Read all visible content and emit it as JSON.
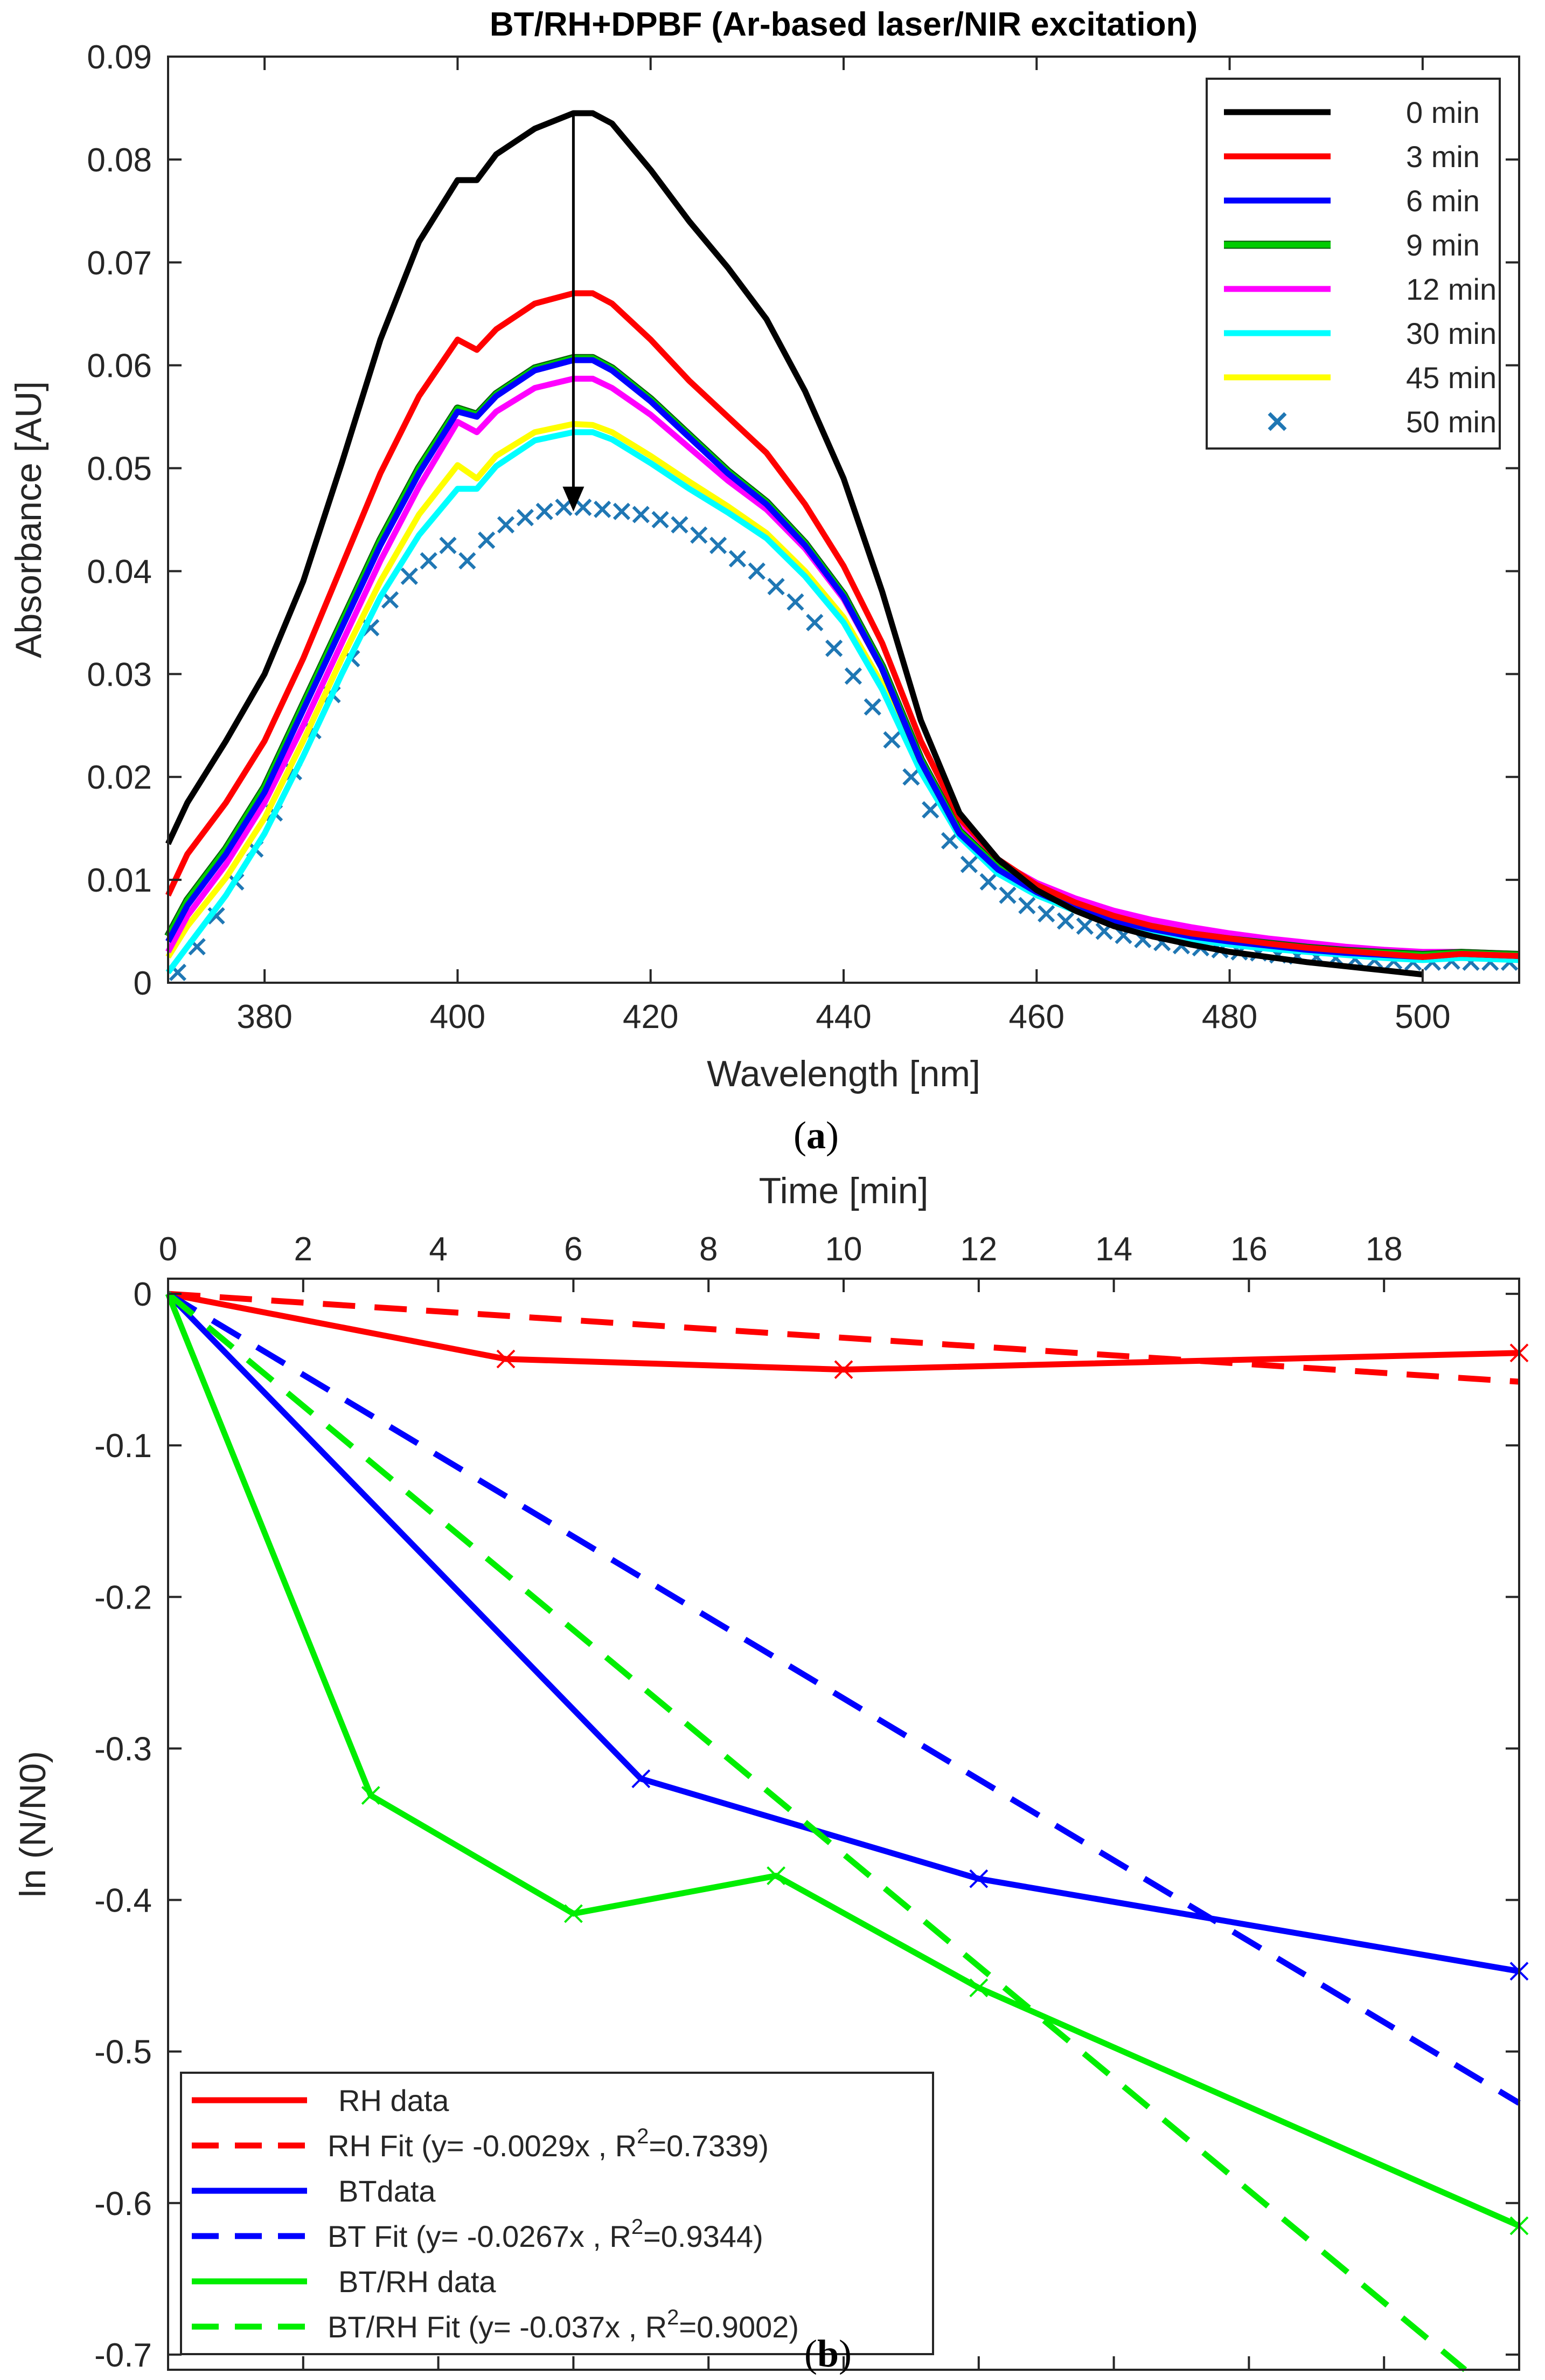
{
  "chart_data": [
    {
      "type": "line",
      "title": "BT/RH+DPBF (Ar-based laser/NIR excitation)",
      "xlabel": "Wavelength [nm]",
      "ylabel": "Absorbance [AU]",
      "xlim": [
        370,
        510
      ],
      "ylim": [
        0,
        0.09
      ],
      "xticks": [
        380,
        400,
        420,
        440,
        460,
        480,
        500
      ],
      "xtick_labels": [
        "380",
        "400",
        "420",
        "440",
        "460",
        "480",
        "500"
      ],
      "yticks": [
        0,
        0.01,
        0.02,
        0.03,
        0.04,
        0.05,
        0.06,
        0.07,
        0.08,
        0.09
      ],
      "ytick_labels": [
        "0",
        "0.01",
        "0.02",
        "0.03",
        "0.04",
        "0.05",
        "0.06",
        "0.07",
        "0.08",
        "0.09"
      ],
      "legend_position": "top-right",
      "caption": "(a)",
      "annotation": "arrow from 0 min peak down to 50 min peak at 412 nm",
      "arrow": {
        "x": 412,
        "y_from": 0.0845,
        "y_to": 0.0458
      },
      "series": [
        {
          "name": "0 min",
          "color": "#000000",
          "style": "line",
          "x": [
            370,
            372,
            376,
            380,
            384,
            388,
            392,
            396,
            400,
            402,
            404,
            408,
            412,
            414,
            416,
            420,
            424,
            428,
            432,
            436,
            440,
            444,
            448,
            452,
            456,
            460,
            464,
            468,
            472,
            476,
            480,
            484,
            488,
            492,
            496,
            500
          ],
          "y": [
            0.0135,
            0.0175,
            0.0235,
            0.03,
            0.039,
            0.0505,
            0.0625,
            0.072,
            0.078,
            0.078,
            0.0805,
            0.083,
            0.0845,
            0.0845,
            0.0835,
            0.079,
            0.074,
            0.0695,
            0.0645,
            0.0575,
            0.049,
            0.038,
            0.0255,
            0.0165,
            0.012,
            0.009,
            0.007,
            0.0055,
            0.0045,
            0.0037,
            0.003,
            0.0025,
            0.002,
            0.0016,
            0.0012,
            0.0008
          ]
        },
        {
          "name": "3 min",
          "color": "#ff0000",
          "style": "line",
          "x": [
            370,
            372,
            376,
            380,
            384,
            388,
            392,
            396,
            400,
            402,
            404,
            408,
            412,
            414,
            416,
            420,
            424,
            428,
            432,
            436,
            440,
            444,
            448,
            452,
            456,
            460,
            464,
            468,
            472,
            476,
            480,
            484,
            488,
            492,
            496,
            500,
            504,
            510
          ],
          "y": [
            0.0085,
            0.0125,
            0.0175,
            0.0235,
            0.0315,
            0.0405,
            0.0495,
            0.057,
            0.0625,
            0.0615,
            0.0635,
            0.066,
            0.067,
            0.067,
            0.066,
            0.0625,
            0.0585,
            0.055,
            0.0515,
            0.0465,
            0.0405,
            0.033,
            0.0235,
            0.016,
            0.012,
            0.0095,
            0.0078,
            0.0065,
            0.0055,
            0.0048,
            0.0043,
            0.0038,
            0.0034,
            0.0031,
            0.0028,
            0.0025,
            0.0028,
            0.0026
          ]
        },
        {
          "name": "6 min",
          "color": "#0000ff",
          "style": "line",
          "x": [
            370,
            372,
            376,
            380,
            384,
            388,
            392,
            396,
            400,
            402,
            404,
            408,
            412,
            414,
            416,
            420,
            424,
            428,
            432,
            436,
            440,
            444,
            448,
            452,
            456,
            460,
            464,
            468,
            472,
            476,
            480,
            484,
            488,
            492,
            496,
            500,
            504,
            510
          ],
          "y": [
            0.004,
            0.0075,
            0.0125,
            0.0185,
            0.0265,
            0.0345,
            0.0425,
            0.0495,
            0.0555,
            0.055,
            0.057,
            0.0595,
            0.0605,
            0.0605,
            0.0595,
            0.0565,
            0.053,
            0.0495,
            0.0465,
            0.0425,
            0.0375,
            0.0305,
            0.0215,
            0.0145,
            0.011,
            0.0088,
            0.0072,
            0.006,
            0.0052,
            0.0045,
            0.004,
            0.0036,
            0.0032,
            0.0029,
            0.0027,
            0.0025,
            0.0028,
            0.0026
          ]
        },
        {
          "name": "9 min",
          "color": "#00cc00",
          "style": "line",
          "x": [
            370,
            372,
            376,
            380,
            384,
            388,
            392,
            396,
            400,
            402,
            404,
            408,
            412,
            414,
            416,
            420,
            424,
            428,
            432,
            436,
            440,
            444,
            448,
            452,
            456,
            460,
            464,
            468,
            472,
            476,
            480,
            484,
            488,
            492,
            496,
            500,
            504,
            510
          ],
          "y": [
            0.0045,
            0.008,
            0.013,
            0.019,
            0.027,
            0.035,
            0.043,
            0.05,
            0.0558,
            0.0552,
            0.0572,
            0.0597,
            0.0607,
            0.0607,
            0.0597,
            0.0567,
            0.0532,
            0.0497,
            0.0467,
            0.0427,
            0.0377,
            0.0307,
            0.0217,
            0.0147,
            0.0112,
            0.009,
            0.0074,
            0.0062,
            0.0054,
            0.0047,
            0.0042,
            0.0038,
            0.0034,
            0.0031,
            0.0029,
            0.0027,
            0.0029,
            0.0027
          ]
        },
        {
          "name": "12 min",
          "color": "#ff00ff",
          "style": "line",
          "x": [
            370,
            372,
            376,
            380,
            384,
            388,
            392,
            396,
            400,
            402,
            404,
            408,
            412,
            414,
            416,
            420,
            424,
            428,
            432,
            436,
            440,
            444,
            448,
            452,
            456,
            460,
            464,
            468,
            472,
            476,
            480,
            484,
            488,
            492,
            496,
            500,
            504,
            510
          ],
          "y": [
            0.003,
            0.0065,
            0.0115,
            0.0175,
            0.025,
            0.033,
            0.041,
            0.0482,
            0.0545,
            0.0535,
            0.0555,
            0.0578,
            0.0587,
            0.0587,
            0.0578,
            0.0552,
            0.052,
            0.0488,
            0.046,
            0.0422,
            0.0373,
            0.0305,
            0.0218,
            0.0152,
            0.0118,
            0.0097,
            0.0082,
            0.007,
            0.0061,
            0.0054,
            0.0048,
            0.0043,
            0.0039,
            0.0035,
            0.0032,
            0.003,
            0.003,
            0.0028
          ]
        },
        {
          "name": "30 min",
          "color": "#00ffff",
          "style": "line",
          "x": [
            370,
            372,
            376,
            380,
            384,
            388,
            392,
            396,
            400,
            402,
            404,
            408,
            412,
            414,
            416,
            420,
            424,
            428,
            432,
            436,
            440,
            444,
            448,
            452,
            456,
            460,
            464,
            468,
            472,
            476,
            480,
            484,
            488,
            492,
            496,
            500,
            504,
            510
          ],
          "y": [
            0.001,
            0.0035,
            0.0085,
            0.0145,
            0.022,
            0.03,
            0.0375,
            0.0435,
            0.048,
            0.048,
            0.0502,
            0.0527,
            0.0535,
            0.0535,
            0.0528,
            0.0505,
            0.048,
            0.0457,
            0.0432,
            0.0395,
            0.035,
            0.0285,
            0.0205,
            0.0142,
            0.0106,
            0.0085,
            0.007,
            0.0058,
            0.0049,
            0.0042,
            0.0037,
            0.0033,
            0.003,
            0.0027,
            0.0024,
            0.0022,
            0.0024,
            0.0022
          ]
        },
        {
          "name": "45 min",
          "color": "#ffff00",
          "style": "line",
          "x": [
            370,
            372,
            376,
            380,
            384,
            388,
            392,
            396,
            400,
            402,
            404,
            408,
            412,
            414,
            416,
            420,
            424,
            428,
            432,
            436,
            440,
            444,
            448,
            452,
            456,
            460,
            464,
            468,
            472,
            476,
            480,
            484,
            488,
            492,
            496,
            500,
            504,
            510
          ],
          "y": [
            0.0025,
            0.0055,
            0.0102,
            0.016,
            0.0235,
            0.0315,
            0.039,
            0.0455,
            0.0503,
            0.049,
            0.0512,
            0.0535,
            0.0543,
            0.0542,
            0.0535,
            0.0512,
            0.0487,
            0.0463,
            0.0437,
            0.04,
            0.0355,
            0.029,
            0.021,
            0.0148,
            0.0113,
            0.0092,
            0.0077,
            0.0065,
            0.0056,
            0.0049,
            0.0044,
            0.004,
            0.0036,
            0.0033,
            0.003,
            0.0028,
            0.0029,
            0.0027
          ]
        },
        {
          "name": "50 min",
          "color": "#1f77b4",
          "style": "x-marker",
          "x": [
            371,
            373,
            375,
            377,
            379,
            381,
            383,
            385,
            387,
            389,
            391,
            393,
            395,
            397,
            399,
            401,
            403,
            405,
            407,
            409,
            411,
            413,
            415,
            417,
            419,
            421,
            423,
            425,
            427,
            429,
            431,
            433,
            435,
            437,
            439,
            441,
            443,
            445,
            447,
            449,
            451,
            453,
            455,
            457,
            459,
            461,
            463,
            465,
            467,
            469,
            471,
            473,
            475,
            477,
            479,
            481,
            483,
            485,
            487,
            489,
            491,
            493,
            495,
            497,
            499,
            501,
            503,
            505,
            507,
            509
          ],
          "y": [
            0.001,
            0.0035,
            0.0065,
            0.0098,
            0.013,
            0.0165,
            0.0205,
            0.0245,
            0.028,
            0.0315,
            0.0345,
            0.0372,
            0.0395,
            0.041,
            0.0425,
            0.041,
            0.043,
            0.0445,
            0.0452,
            0.0458,
            0.0462,
            0.0462,
            0.046,
            0.0458,
            0.0455,
            0.045,
            0.0445,
            0.0435,
            0.0425,
            0.0412,
            0.04,
            0.0385,
            0.037,
            0.035,
            0.0325,
            0.0298,
            0.0268,
            0.0236,
            0.02,
            0.0168,
            0.0138,
            0.0115,
            0.0098,
            0.0085,
            0.0075,
            0.0067,
            0.006,
            0.0055,
            0.005,
            0.0046,
            0.0042,
            0.0039,
            0.0036,
            0.0034,
            0.0032,
            0.003,
            0.0029,
            0.0027,
            0.0026,
            0.0025,
            0.0024,
            0.0023,
            0.0022,
            0.0021,
            0.002,
            0.002,
            0.0021,
            0.002,
            0.002,
            0.002
          ]
        }
      ]
    },
    {
      "type": "line",
      "title": "",
      "xlabel": "Time [min]",
      "ylabel": "ln (N/N0)",
      "xlim": [
        0,
        20
      ],
      "ylim": [
        -0.71,
        0.01
      ],
      "xaxis_location": "top",
      "xticks": [
        0,
        2,
        4,
        6,
        8,
        10,
        12,
        14,
        16,
        18
      ],
      "xtick_labels": [
        "0",
        "2",
        "4",
        "6",
        "8",
        "10",
        "12",
        "14",
        "16",
        "18"
      ],
      "yticks": [
        0,
        -0.1,
        -0.2,
        -0.3,
        -0.4,
        -0.5,
        -0.6,
        -0.7
      ],
      "ytick_labels": [
        "0",
        "-0.1",
        "-0.2",
        "-0.3",
        "-0.4",
        "-0.5",
        "-0.6",
        "-0.7"
      ],
      "legend_position": "bottom-left",
      "caption": "(b)",
      "series": [
        {
          "name": "RH data",
          "color": "#ff0000",
          "style": "solid",
          "markers": true,
          "x": [
            0,
            5,
            10,
            20
          ],
          "y": [
            0,
            -0.043,
            -0.05,
            -0.039
          ]
        },
        {
          "name": "RH Fit",
          "legend_label": "RH Fit (y= -0.0029x , R",
          "legend_r2": "=0.7339)",
          "color": "#ff0000",
          "style": "dashed",
          "slope": -0.0029,
          "r2": 0.7339,
          "x": [
            0,
            20
          ],
          "y": [
            0,
            -0.058
          ]
        },
        {
          "name": "BTdata",
          "color": "#0000ff",
          "style": "solid",
          "markers": true,
          "x": [
            0,
            7,
            12,
            20
          ],
          "y": [
            0,
            -0.32,
            -0.386,
            -0.447
          ]
        },
        {
          "name": "BT Fit",
          "legend_label": "BT Fit (y= -0.0267x , R",
          "legend_r2": "=0.9344)",
          "color": "#0000ff",
          "style": "dashed",
          "slope": -0.0267,
          "r2": 0.9344,
          "x": [
            0,
            20
          ],
          "y": [
            0,
            -0.534
          ]
        },
        {
          "name": "BT/RH data",
          "color": "#00ee00",
          "style": "solid",
          "markers": true,
          "x": [
            0,
            3,
            6,
            9,
            12,
            20
          ],
          "y": [
            0,
            -0.331,
            -0.409,
            -0.384,
            -0.458,
            -0.615
          ]
        },
        {
          "name": "BT/RH Fit",
          "legend_label": "BT/RH Fit (y= -0.037x , R",
          "legend_r2": "=0.9002)",
          "color": "#00ee00",
          "style": "dashed",
          "slope": -0.037,
          "r2": 0.9002,
          "x": [
            0,
            19.2
          ],
          "y": [
            0,
            -0.71
          ]
        }
      ]
    }
  ]
}
